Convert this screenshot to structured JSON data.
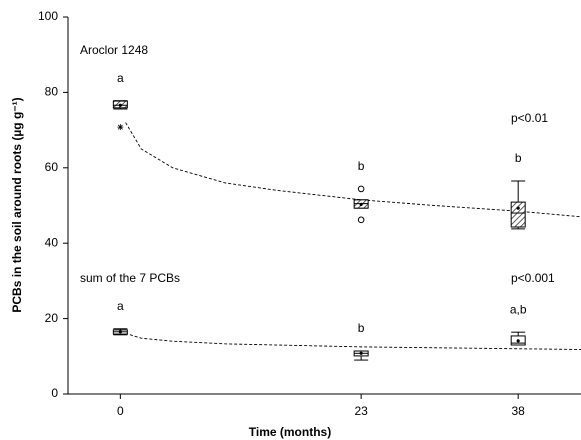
{
  "chart_data": {
    "type": "box",
    "x_label": "Time (months)",
    "y_label": "PCBs in the soil around roots (µg g⁻¹)",
    "xlim": [
      -5,
      44
    ],
    "xticks": [
      0,
      23,
      38
    ],
    "ylim": [
      0,
      100
    ],
    "yticks": [
      0,
      20,
      40,
      60,
      80,
      100
    ],
    "series": [
      {
        "name": "Aroclor 1248",
        "p_value": "p<0.01",
        "hatched": true,
        "letters": [
          "a",
          "b",
          "b"
        ],
        "boxes": [
          {
            "x": 0,
            "whisker_low": 75.6,
            "q1": 75.9,
            "median": 76.6,
            "q3": 77.7,
            "whisker_high": 77.8,
            "mean": 76.6,
            "outliers": [],
            "extremes": [
              70.8
            ]
          },
          {
            "x": 23,
            "whisker_low": 49.3,
            "q1": 49.3,
            "median": 50.5,
            "q3": 51.5,
            "whisker_high": 51.5,
            "mean": 50.3,
            "outliers": [
              54.4,
              46.2
            ],
            "extremes": []
          },
          {
            "x": 38,
            "whisker_low": 43.8,
            "q1": 44.3,
            "median": 48,
            "q3": 50.9,
            "whisker_high": 56.5,
            "mean": 49.3,
            "outliers": [],
            "extremes": []
          }
        ],
        "fit": {
          "x": [
            0.5,
            2,
            5,
            10,
            15,
            23,
            30,
            38,
            44
          ],
          "y": [
            72,
            65,
            60,
            56,
            54,
            51.5,
            50,
            48.5,
            47
          ]
        }
      },
      {
        "name": "sum of the 7 PCBs",
        "p_value": "p<0.001",
        "hatched": false,
        "letters": [
          "a",
          "b",
          "a,b"
        ],
        "boxes": [
          {
            "x": 0,
            "whisker_low": 15.7,
            "q1": 15.9,
            "median": 16.5,
            "q3": 17.0,
            "whisker_high": 17.3,
            "mean": 16.5,
            "outliers": [],
            "extremes": []
          },
          {
            "x": 23,
            "whisker_low": 9.0,
            "q1": 10.1,
            "median": 10.8,
            "q3": 11.4,
            "whisker_high": 11.4,
            "mean": 10.8,
            "outliers": [],
            "extremes": []
          },
          {
            "x": 38,
            "whisker_low": 13.0,
            "q1": 13.0,
            "median": 13.5,
            "q3": 15.4,
            "whisker_high": 16.4,
            "mean": 14.1,
            "outliers": [],
            "extremes": []
          }
        ],
        "fit": {
          "x": [
            0,
            2,
            5,
            10,
            23,
            38,
            44
          ],
          "y": [
            16.5,
            14.8,
            14.0,
            13.3,
            12.5,
            12.0,
            11.8
          ]
        }
      }
    ]
  }
}
